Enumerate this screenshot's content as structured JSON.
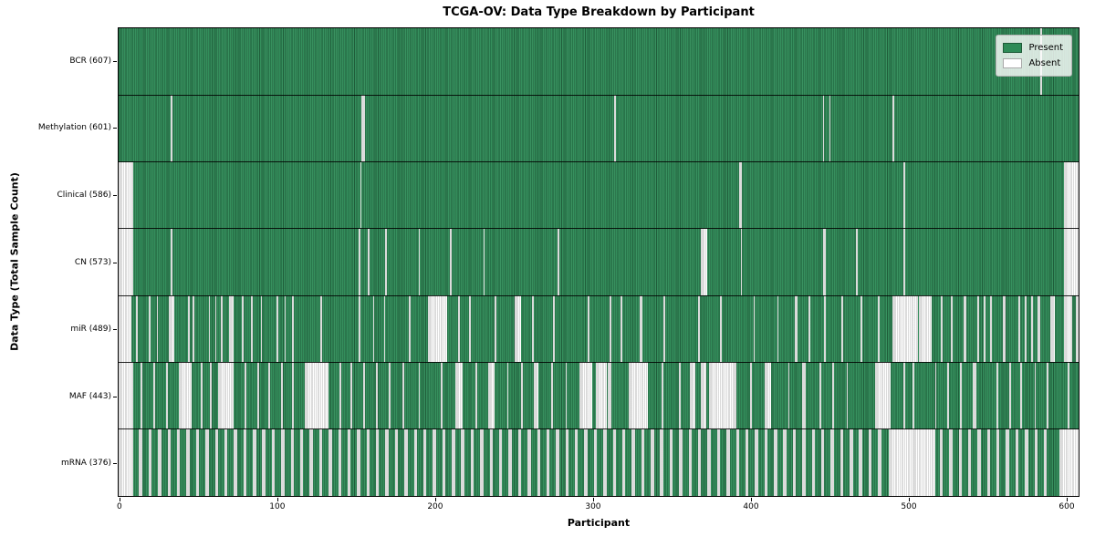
{
  "colors": {
    "present": "#2e8b57",
    "absent": "#ffffff",
    "axis": "#000000"
  },
  "legend": {
    "present_label": "Present",
    "absent_label": "Absent"
  },
  "chart_data": {
    "type": "heatmap",
    "title": "TCGA-OV: Data Type Breakdown by Participant",
    "xlabel": "Participant",
    "ylabel": "Data Type (Total Sample Count)",
    "legend_entries": [
      "Present",
      "Absent"
    ],
    "legend_position": "upper right",
    "grid": false,
    "n_participants": 608,
    "x_ticks": [
      0,
      100,
      200,
      300,
      400,
      500,
      600
    ],
    "xlim": [
      -0.5,
      607.5
    ],
    "value_encoding": {
      "present": "#2e8b57",
      "absent": "#ffffff"
    },
    "rows": [
      {
        "label": "BCR (607)",
        "name": "BCR",
        "present_count": 607,
        "absent_count": 1,
        "absent_ranges": [
          [
            584,
            584
          ]
        ]
      },
      {
        "label": "Methylation (601)",
        "name": "Methylation",
        "present_count": 601,
        "absent_count": 7,
        "absent_ranges": [
          [
            33,
            33
          ],
          [
            154,
            155
          ],
          [
            314,
            314
          ],
          [
            446,
            446
          ],
          [
            450,
            450
          ],
          [
            490,
            490
          ]
        ]
      },
      {
        "label": "Clinical (586)",
        "name": "Clinical",
        "present_count": 586,
        "absent_count": 22,
        "absent_ranges": [
          [
            0,
            8
          ],
          [
            153,
            153
          ],
          [
            393,
            394
          ],
          [
            497,
            497
          ],
          [
            599,
            607
          ]
        ]
      },
      {
        "label": "CN (573)",
        "name": "CN",
        "present_count": 573,
        "absent_count": 35,
        "absent_ranges": [
          [
            0,
            8
          ],
          [
            33,
            33
          ],
          [
            152,
            152
          ],
          [
            158,
            158
          ],
          [
            169,
            169
          ],
          [
            190,
            190
          ],
          [
            210,
            210
          ],
          [
            231,
            231
          ],
          [
            278,
            278
          ],
          [
            369,
            372
          ],
          [
            394,
            394
          ],
          [
            446,
            447
          ],
          [
            467,
            467
          ],
          [
            497,
            497
          ],
          [
            599,
            607
          ]
        ]
      },
      {
        "label": "miR (489)",
        "name": "miR",
        "present_count": 489,
        "absent_count": 119,
        "absent_ranges": [
          [
            0,
            7
          ],
          [
            11,
            11
          ],
          [
            19,
            19
          ],
          [
            24,
            24
          ],
          [
            32,
            34
          ],
          [
            44,
            44
          ],
          [
            47,
            47
          ],
          [
            57,
            57
          ],
          [
            61,
            61
          ],
          [
            65,
            65
          ],
          [
            70,
            72
          ],
          [
            78,
            78
          ],
          [
            84,
            84
          ],
          [
            90,
            90
          ],
          [
            100,
            100
          ],
          [
            105,
            105
          ],
          [
            110,
            110
          ],
          [
            128,
            128
          ],
          [
            152,
            152
          ],
          [
            161,
            161
          ],
          [
            168,
            168
          ],
          [
            184,
            184
          ],
          [
            196,
            207
          ],
          [
            215,
            215
          ],
          [
            222,
            222
          ],
          [
            238,
            238
          ],
          [
            251,
            254
          ],
          [
            262,
            262
          ],
          [
            275,
            275
          ],
          [
            297,
            297
          ],
          [
            311,
            311
          ],
          [
            318,
            318
          ],
          [
            330,
            331
          ],
          [
            345,
            345
          ],
          [
            367,
            367
          ],
          [
            381,
            381
          ],
          [
            402,
            402
          ],
          [
            417,
            417
          ],
          [
            428,
            429
          ],
          [
            437,
            437
          ],
          [
            447,
            447
          ],
          [
            458,
            458
          ],
          [
            470,
            470
          ],
          [
            481,
            481
          ],
          [
            490,
            505
          ],
          [
            507,
            514
          ],
          [
            521,
            521
          ],
          [
            527,
            527
          ],
          [
            535,
            536
          ],
          [
            544,
            544
          ],
          [
            548,
            548
          ],
          [
            552,
            552
          ],
          [
            560,
            561
          ],
          [
            570,
            570
          ],
          [
            574,
            574
          ],
          [
            578,
            578
          ],
          [
            582,
            583
          ],
          [
            590,
            592
          ],
          [
            599,
            603
          ],
          [
            606,
            607
          ]
        ]
      },
      {
        "label": "MAF (443)",
        "name": "MAF",
        "present_count": 443,
        "absent_count": 165,
        "absent_ranges": [
          [
            0,
            8
          ],
          [
            14,
            14
          ],
          [
            22,
            22
          ],
          [
            30,
            30
          ],
          [
            38,
            45
          ],
          [
            52,
            52
          ],
          [
            58,
            58
          ],
          [
            63,
            72
          ],
          [
            80,
            80
          ],
          [
            88,
            88
          ],
          [
            95,
            95
          ],
          [
            103,
            103
          ],
          [
            110,
            110
          ],
          [
            118,
            132
          ],
          [
            140,
            140
          ],
          [
            147,
            147
          ],
          [
            155,
            155
          ],
          [
            163,
            163
          ],
          [
            171,
            171
          ],
          [
            180,
            180
          ],
          [
            190,
            190
          ],
          [
            204,
            204
          ],
          [
            213,
            217
          ],
          [
            226,
            226
          ],
          [
            234,
            237
          ],
          [
            246,
            246
          ],
          [
            255,
            255
          ],
          [
            263,
            265
          ],
          [
            274,
            274
          ],
          [
            283,
            283
          ],
          [
            292,
            299
          ],
          [
            302,
            308
          ],
          [
            310,
            311
          ],
          [
            323,
            334
          ],
          [
            344,
            344
          ],
          [
            355,
            355
          ],
          [
            362,
            364
          ],
          [
            369,
            371
          ],
          [
            374,
            390
          ],
          [
            400,
            400
          ],
          [
            409,
            412
          ],
          [
            424,
            424
          ],
          [
            433,
            434
          ],
          [
            444,
            444
          ],
          [
            452,
            452
          ],
          [
            461,
            461
          ],
          [
            479,
            488
          ],
          [
            497,
            497
          ],
          [
            503,
            503
          ],
          [
            517,
            517
          ],
          [
            525,
            525
          ],
          [
            533,
            533
          ],
          [
            541,
            542
          ],
          [
            556,
            556
          ],
          [
            564,
            564
          ],
          [
            571,
            571
          ],
          [
            580,
            580
          ],
          [
            588,
            588
          ],
          [
            601,
            601
          ]
        ]
      },
      {
        "label": "mRNA (376)",
        "name": "mRNA",
        "present_count": 376,
        "absent_count": 232,
        "absent_ranges": [
          [
            0,
            8
          ],
          [
            13,
            14
          ],
          [
            19,
            20
          ],
          [
            25,
            26
          ],
          [
            31,
            32
          ],
          [
            37,
            38
          ],
          [
            43,
            44
          ],
          [
            49,
            50
          ],
          [
            55,
            56
          ],
          [
            61,
            62
          ],
          [
            67,
            68
          ],
          [
            73,
            74
          ],
          [
            79,
            80
          ],
          [
            85,
            86
          ],
          [
            91,
            92
          ],
          [
            97,
            98
          ],
          [
            103,
            104
          ],
          [
            109,
            110
          ],
          [
            115,
            116
          ],
          [
            121,
            122
          ],
          [
            127,
            128
          ],
          [
            133,
            134
          ],
          [
            139,
            140
          ],
          [
            145,
            146
          ],
          [
            151,
            152
          ],
          [
            157,
            158
          ],
          [
            163,
            164
          ],
          [
            169,
            170
          ],
          [
            175,
            176
          ],
          [
            181,
            182
          ],
          [
            187,
            188
          ],
          [
            193,
            194
          ],
          [
            199,
            200
          ],
          [
            205,
            206
          ],
          [
            211,
            212
          ],
          [
            217,
            218
          ],
          [
            223,
            224
          ],
          [
            229,
            230
          ],
          [
            235,
            236
          ],
          [
            241,
            242
          ],
          [
            247,
            248
          ],
          [
            253,
            254
          ],
          [
            259,
            260
          ],
          [
            265,
            266
          ],
          [
            271,
            272
          ],
          [
            277,
            278
          ],
          [
            283,
            284
          ],
          [
            289,
            290
          ],
          [
            295,
            296
          ],
          [
            301,
            302
          ],
          [
            307,
            308
          ],
          [
            313,
            314
          ],
          [
            319,
            320
          ],
          [
            325,
            326
          ],
          [
            331,
            332
          ],
          [
            337,
            338
          ],
          [
            343,
            344
          ],
          [
            349,
            350
          ],
          [
            355,
            356
          ],
          [
            361,
            362
          ],
          [
            367,
            368
          ],
          [
            373,
            374
          ],
          [
            379,
            380
          ],
          [
            385,
            386
          ],
          [
            391,
            392
          ],
          [
            397,
            398
          ],
          [
            403,
            404
          ],
          [
            409,
            410
          ],
          [
            415,
            416
          ],
          [
            421,
            422
          ],
          [
            427,
            428
          ],
          [
            433,
            434
          ],
          [
            439,
            440
          ],
          [
            445,
            446
          ],
          [
            451,
            452
          ],
          [
            457,
            458
          ],
          [
            463,
            464
          ],
          [
            469,
            470
          ],
          [
            475,
            476
          ],
          [
            481,
            482
          ],
          [
            488,
            516
          ],
          [
            520,
            521
          ],
          [
            526,
            527
          ],
          [
            532,
            533
          ],
          [
            538,
            539
          ],
          [
            544,
            545
          ],
          [
            550,
            551
          ],
          [
            556,
            557
          ],
          [
            562,
            563
          ],
          [
            568,
            569
          ],
          [
            574,
            575
          ],
          [
            580,
            581
          ],
          [
            586,
            587
          ],
          [
            596,
            607
          ]
        ]
      }
    ]
  }
}
